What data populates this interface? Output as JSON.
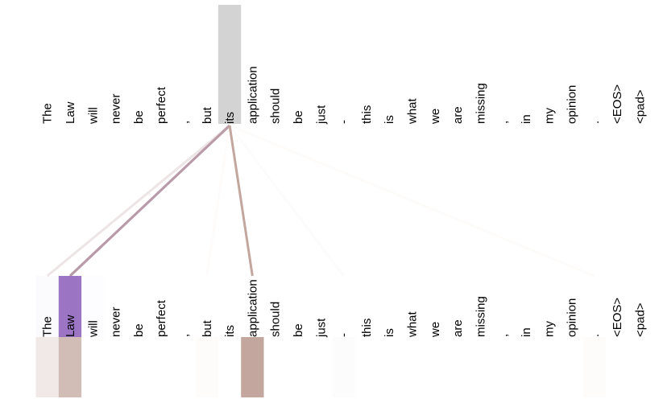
{
  "diagram": {
    "type": "attention-visualization",
    "top_tokens": [
      "The",
      "Law",
      "will",
      "never",
      "be",
      "perfect",
      ",",
      "but",
      "its",
      "application",
      "should",
      "be",
      "just",
      "-",
      "this",
      "is",
      "what",
      "we",
      "are",
      "missing",
      ",",
      "in",
      "my",
      "opinion",
      ".",
      "<EOS>",
      "<pad>"
    ],
    "bottom_tokens": [
      "The",
      "Law",
      "will",
      "never",
      "be",
      "perfect",
      ",",
      "but",
      "its",
      "application",
      "should",
      "be",
      "just",
      "-",
      "this",
      "is",
      "what",
      "we",
      "are",
      "missing",
      ",",
      "in",
      "my",
      "opinion",
      ".",
      "<EOS>",
      "<pad>"
    ],
    "selected_top_index": 8,
    "selected_color": "#d3d3d3",
    "heads": [
      {
        "color": "#9b75c4",
        "weights": [
          0.04,
          1.0,
          0.02,
          0,
          0,
          0,
          0,
          0,
          0,
          0,
          0,
          0,
          0,
          0,
          0,
          0,
          0,
          0,
          0,
          0,
          0,
          0,
          0,
          0,
          0,
          0,
          0
        ]
      },
      {
        "color": "#c3a79e",
        "weights": [
          0.25,
          0.75,
          0,
          0,
          0,
          0,
          0,
          0.04,
          0,
          1.0,
          0,
          0,
          0,
          0.03,
          0,
          0,
          0,
          0,
          0,
          0,
          0,
          0,
          0,
          0,
          0.04,
          0,
          0
        ]
      }
    ]
  }
}
